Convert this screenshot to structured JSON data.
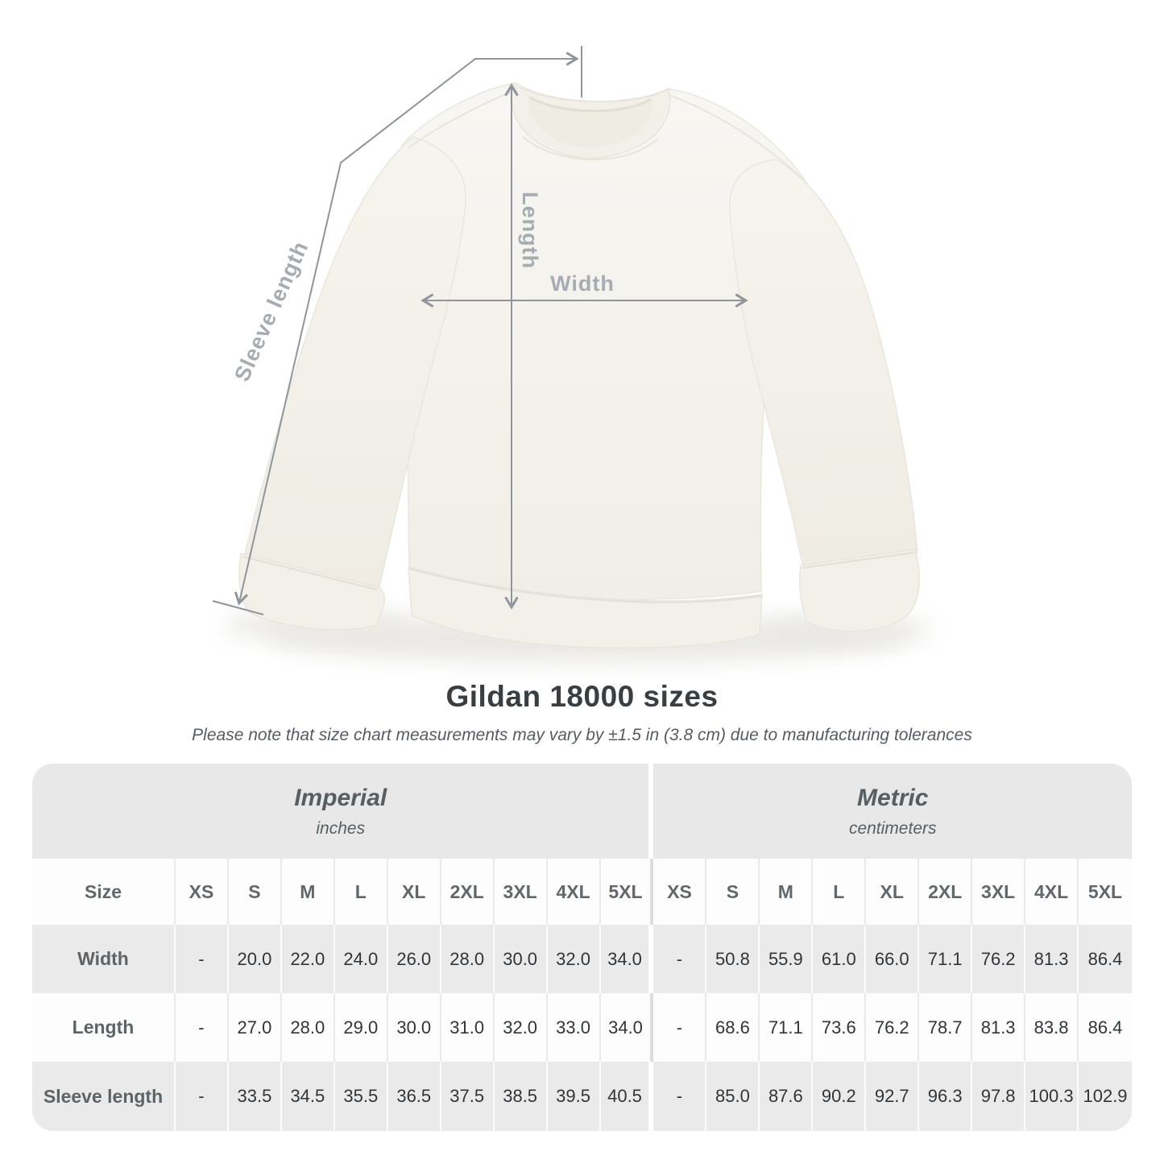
{
  "title": "Gildan 18000 sizes",
  "note": "Please note that size chart measurements may vary by ±1.5 in (3.8 cm) due to manufacturing tolerances",
  "diagram": {
    "length_label": "Length",
    "width_label": "Width",
    "sleeve_label": "Sleeve length",
    "line_color": "#8f959a",
    "label_color": "#a6acb1",
    "garment_color": "#f5f3ee"
  },
  "size_table": {
    "corner_label": "Size",
    "sections": [
      {
        "name": "Imperial",
        "unit": "inches"
      },
      {
        "name": "Metric",
        "unit": "centimeters"
      }
    ],
    "sizes": [
      "XS",
      "S",
      "M",
      "L",
      "XL",
      "2XL",
      "3XL",
      "4XL",
      "5XL"
    ],
    "rows": [
      {
        "label": "Width",
        "imperial": [
          "-",
          "20.0",
          "22.0",
          "24.0",
          "26.0",
          "28.0",
          "30.0",
          "32.0",
          "34.0"
        ],
        "metric": [
          "-",
          "50.8",
          "55.9",
          "61.0",
          "66.0",
          "71.1",
          "76.2",
          "81.3",
          "86.4"
        ]
      },
      {
        "label": "Length",
        "imperial": [
          "-",
          "27.0",
          "28.0",
          "29.0",
          "30.0",
          "31.0",
          "32.0",
          "33.0",
          "34.0"
        ],
        "metric": [
          "-",
          "68.6",
          "71.1",
          "73.6",
          "76.2",
          "78.7",
          "81.3",
          "83.8",
          "86.4"
        ]
      },
      {
        "label": "Sleeve length",
        "imperial": [
          "-",
          "33.5",
          "34.5",
          "35.5",
          "36.5",
          "37.5",
          "38.5",
          "39.5",
          "40.5"
        ],
        "metric": [
          "-",
          "85.0",
          "87.6",
          "90.2",
          "92.7",
          "96.3",
          "97.8",
          "100.3",
          "102.9"
        ]
      }
    ]
  },
  "chart_data": {
    "type": "table",
    "title": "Gildan 18000 sizes",
    "sizes": [
      "XS",
      "S",
      "M",
      "L",
      "XL",
      "2XL",
      "3XL",
      "4XL",
      "5XL"
    ],
    "measurements": [
      {
        "name": "Width",
        "inches": [
          null,
          20.0,
          22.0,
          24.0,
          26.0,
          28.0,
          30.0,
          32.0,
          34.0
        ],
        "centimeters": [
          null,
          50.8,
          55.9,
          61.0,
          66.0,
          71.1,
          76.2,
          81.3,
          86.4
        ]
      },
      {
        "name": "Length",
        "inches": [
          null,
          27.0,
          28.0,
          29.0,
          30.0,
          31.0,
          32.0,
          33.0,
          34.0
        ],
        "centimeters": [
          null,
          68.6,
          71.1,
          73.6,
          76.2,
          78.7,
          81.3,
          83.8,
          86.4
        ]
      },
      {
        "name": "Sleeve length",
        "inches": [
          null,
          33.5,
          34.5,
          35.5,
          36.5,
          37.5,
          38.5,
          39.5,
          40.5
        ],
        "centimeters": [
          null,
          85.0,
          87.6,
          90.2,
          92.7,
          96.3,
          97.8,
          100.3,
          102.9
        ]
      }
    ],
    "tolerance_note": "±1.5 in (3.8 cm)"
  }
}
